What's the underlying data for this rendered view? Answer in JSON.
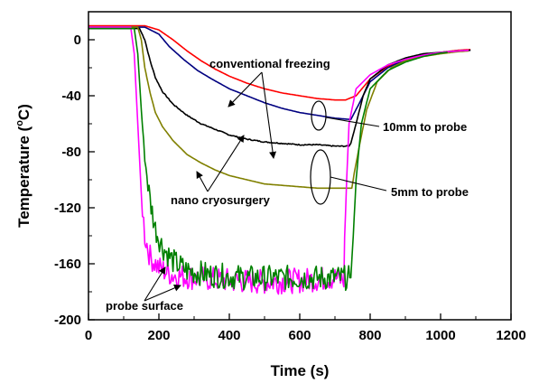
{
  "chart_data": {
    "type": "line",
    "xlabel": "Time (s)",
    "ylabel": "Temperature (°C)",
    "ylabel_parts": [
      "Temperature (",
      "o",
      "C)"
    ],
    "xlim": [
      0,
      1200
    ],
    "ylim": [
      -200,
      20
    ],
    "x_ticks": [
      0,
      200,
      400,
      600,
      800,
      1000,
      1200
    ],
    "y_ticks": [
      0,
      -40,
      -80,
      -120,
      -160,
      -200
    ],
    "grid": false,
    "legend": "none",
    "annotations": {
      "conventional": "conventional freezing",
      "nano": "nano cryosurgery",
      "ten_mm": "10mm to probe",
      "five_mm": "5mm to probe",
      "probe": "probe surface"
    },
    "series": [
      {
        "color": "#ff0000",
        "group": "conventional 5mm",
        "points": [
          [
            0,
            10
          ],
          [
            160,
            10
          ],
          [
            200,
            7
          ],
          [
            240,
            0
          ],
          [
            280,
            -8
          ],
          [
            320,
            -15
          ],
          [
            360,
            -21
          ],
          [
            400,
            -26
          ],
          [
            450,
            -31
          ],
          [
            500,
            -35
          ],
          [
            550,
            -38
          ],
          [
            600,
            -40
          ],
          [
            650,
            -42
          ],
          [
            700,
            -43
          ],
          [
            730,
            -43
          ],
          [
            760,
            -40
          ],
          [
            800,
            -28
          ],
          [
            850,
            -19
          ],
          [
            900,
            -14
          ],
          [
            950,
            -11
          ],
          [
            1000,
            -9
          ],
          [
            1050,
            -7.5
          ],
          [
            1085,
            -7
          ]
        ]
      },
      {
        "color": "#000080",
        "group": "conventional 10mm",
        "points": [
          [
            0,
            9
          ],
          [
            160,
            9
          ],
          [
            200,
            4
          ],
          [
            230,
            -5
          ],
          [
            270,
            -14
          ],
          [
            310,
            -22
          ],
          [
            350,
            -28
          ],
          [
            400,
            -35
          ],
          [
            450,
            -40
          ],
          [
            500,
            -45
          ],
          [
            550,
            -49
          ],
          [
            600,
            -52
          ],
          [
            650,
            -54
          ],
          [
            700,
            -56
          ],
          [
            745,
            -57
          ],
          [
            770,
            -45
          ],
          [
            800,
            -30
          ],
          [
            850,
            -20
          ],
          [
            900,
            -14
          ],
          [
            950,
            -11
          ],
          [
            1000,
            -9
          ],
          [
            1050,
            -8
          ],
          [
            1085,
            -7.5
          ]
        ]
      },
      {
        "color": "#000000",
        "group": "nano 10mm",
        "noise": 1.5,
        "points": [
          [
            0,
            8
          ],
          [
            145,
            8
          ],
          [
            160,
            0
          ],
          [
            175,
            -15
          ],
          [
            190,
            -27
          ],
          [
            210,
            -37
          ],
          [
            240,
            -46
          ],
          [
            280,
            -54
          ],
          [
            320,
            -60
          ],
          [
            360,
            -64
          ],
          [
            400,
            -68
          ],
          [
            450,
            -71
          ],
          [
            500,
            -73
          ],
          [
            550,
            -74
          ],
          [
            600,
            -75
          ],
          [
            650,
            -75
          ],
          [
            700,
            -76
          ],
          [
            740,
            -76
          ],
          [
            745,
            -74
          ],
          [
            760,
            -60
          ],
          [
            780,
            -40
          ],
          [
            800,
            -28
          ],
          [
            850,
            -18
          ],
          [
            900,
            -13
          ],
          [
            950,
            -10
          ],
          [
            1000,
            -9
          ],
          [
            1050,
            -8
          ],
          [
            1085,
            -7.5
          ]
        ]
      },
      {
        "color": "#808000",
        "group": "nano 5mm",
        "points": [
          [
            0,
            9
          ],
          [
            140,
            9
          ],
          [
            150,
            0
          ],
          [
            160,
            -20
          ],
          [
            175,
            -38
          ],
          [
            190,
            -52
          ],
          [
            210,
            -62
          ],
          [
            240,
            -72
          ],
          [
            280,
            -82
          ],
          [
            320,
            -88
          ],
          [
            360,
            -93
          ],
          [
            400,
            -97
          ],
          [
            450,
            -100
          ],
          [
            500,
            -103
          ],
          [
            550,
            -104
          ],
          [
            600,
            -105
          ],
          [
            650,
            -106
          ],
          [
            700,
            -106
          ],
          [
            748,
            -106
          ],
          [
            755,
            -95
          ],
          [
            770,
            -75
          ],
          [
            790,
            -50
          ],
          [
            820,
            -30
          ],
          [
            860,
            -20
          ],
          [
            900,
            -15
          ],
          [
            950,
            -12
          ],
          [
            1000,
            -10
          ],
          [
            1050,
            -8.5
          ],
          [
            1080,
            -8
          ]
        ]
      },
      {
        "color": "#ff00ff",
        "group": "probe surface (conventional)",
        "noise": 9,
        "points": [
          [
            0,
            9
          ],
          [
            120,
            9
          ],
          [
            130,
            -10
          ],
          [
            140,
            -60
          ],
          [
            150,
            -110
          ],
          [
            160,
            -140
          ],
          [
            175,
            -155
          ],
          [
            200,
            -163
          ],
          [
            240,
            -168
          ],
          [
            300,
            -170
          ],
          [
            400,
            -172
          ],
          [
            500,
            -173
          ],
          [
            600,
            -172
          ],
          [
            700,
            -170
          ],
          [
            725,
            -172
          ],
          [
            730,
            -120
          ],
          [
            740,
            -60
          ],
          [
            760,
            -35
          ],
          [
            800,
            -25
          ],
          [
            850,
            -18
          ],
          [
            900,
            -14
          ],
          [
            950,
            -11
          ],
          [
            1000,
            -9
          ],
          [
            1050,
            -8
          ],
          [
            1080,
            -7.5
          ]
        ]
      },
      {
        "color": "#008000",
        "group": "probe surface (nano)",
        "noise": 9,
        "points": [
          [
            0,
            8
          ],
          [
            130,
            8
          ],
          [
            140,
            -10
          ],
          [
            150,
            -50
          ],
          [
            160,
            -85
          ],
          [
            175,
            -115
          ],
          [
            190,
            -135
          ],
          [
            210,
            -148
          ],
          [
            240,
            -158
          ],
          [
            280,
            -165
          ],
          [
            350,
            -168
          ],
          [
            450,
            -170
          ],
          [
            550,
            -170
          ],
          [
            650,
            -170
          ],
          [
            745,
            -170
          ],
          [
            752,
            -140
          ],
          [
            760,
            -100
          ],
          [
            775,
            -60
          ],
          [
            800,
            -35
          ],
          [
            850,
            -22
          ],
          [
            900,
            -16
          ],
          [
            950,
            -12
          ],
          [
            1000,
            -9.5
          ],
          [
            1020,
            -9
          ]
        ]
      }
    ]
  }
}
